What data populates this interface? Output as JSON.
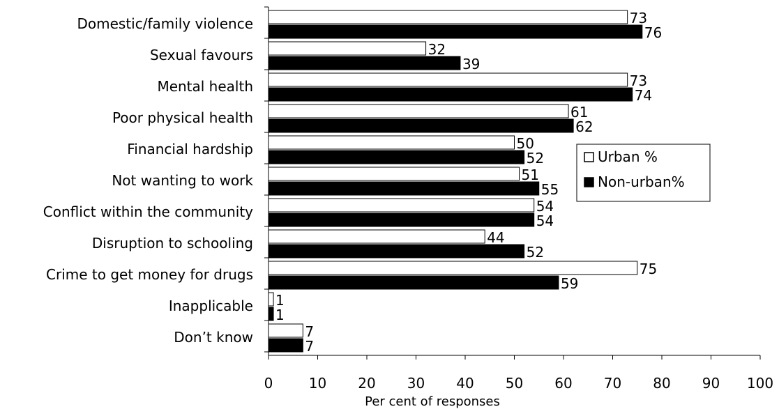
{
  "chart_data": {
    "type": "bar",
    "orientation": "horizontal",
    "categories": [
      "Domestic/family violence",
      "Sexual favours",
      "Mental health",
      "Poor physical health",
      "Financial hardship",
      "Not wanting to work",
      "Conflict within the community",
      "Disruption to schooling",
      "Crime to get money for drugs",
      "Inapplicable",
      "Don’t know"
    ],
    "series": [
      {
        "name": "Urban %",
        "values": [
          73,
          32,
          73,
          61,
          50,
          51,
          54,
          44,
          75,
          1,
          7
        ],
        "color": "#ffffff"
      },
      {
        "name": "Non-urban%",
        "values": [
          76,
          39,
          74,
          62,
          52,
          55,
          54,
          52,
          59,
          1,
          7
        ],
        "color": "#000000"
      }
    ],
    "xlabel": "Per cent of responses",
    "xlim": [
      0,
      100
    ],
    "xticks": [
      0,
      10,
      20,
      30,
      40,
      50,
      60,
      70,
      80,
      90,
      100
    ],
    "grid": false,
    "legend_position": "right"
  }
}
